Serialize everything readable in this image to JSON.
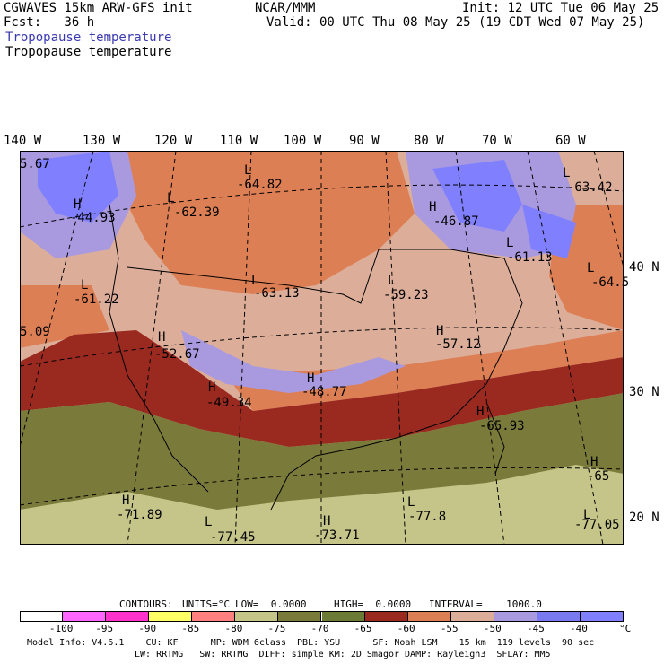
{
  "header": {
    "left1": "CGWAVES 15km ARW-GFS init",
    "left2": "Fcst:   36 h",
    "center1": "NCAR/MMM",
    "right1": "Init: 12 UTC Tue 06 May 25",
    "right2": "Valid: 00 UTC Thu 08 May 25 (19 CDT Wed 07 May 25)",
    "title_blue": "Tropopause temperature",
    "title_black": "Tropopause temperature",
    "title_blue_color": "#3a3ab0"
  },
  "axes": {
    "lon_labels": [
      "140 W",
      "130 W",
      "120 W",
      "110 W",
      "100 W",
      "90 W",
      "80 W",
      "70 W",
      "60 W"
    ],
    "lat_labels": [
      "40 N",
      "30 N",
      "20 N"
    ]
  },
  "map_labels": [
    {
      "id": "ne-low",
      "letter": "L",
      "value": "-64.82"
    },
    {
      "id": "nw-low",
      "letter": "L",
      "value": "-62.39"
    },
    {
      "id": "pnw-high",
      "letter": "H",
      "value": "-44.93"
    },
    {
      "id": "lakes-high",
      "letter": "H",
      "value": "-46.87"
    },
    {
      "id": "nb-low",
      "letter": "L",
      "value": "-63.42"
    },
    {
      "id": "nbr-low",
      "letter": "L",
      "value": "-61.13"
    },
    {
      "id": "atl-low",
      "letter": "L",
      "value": "-64.5"
    },
    {
      "id": "west-low",
      "letter": "L",
      "value": "-61.22"
    },
    {
      "id": "plains-low",
      "letter": "L",
      "value": "-63.13"
    },
    {
      "id": "ohio-low",
      "letter": "L",
      "value": "-59.23"
    },
    {
      "id": "ma-high",
      "letter": "H",
      "value": "-57.12"
    },
    {
      "id": "sw-high",
      "letter": "H",
      "value": "-52.67"
    },
    {
      "id": "nm-high",
      "letter": "H",
      "value": "-49.34"
    },
    {
      "id": "ok-high",
      "letter": "H",
      "value": "-48.77"
    },
    {
      "id": "ga-high",
      "letter": "H",
      "value": "-65.93"
    },
    {
      "id": "atl2-high",
      "letter": "H",
      "value": "-65"
    },
    {
      "id": "pac-high",
      "letter": "H",
      "value": "-71.89"
    },
    {
      "id": "mx-low",
      "letter": "L",
      "value": "-77.45"
    },
    {
      "id": "gulf-high",
      "letter": "H",
      "value": "-73.71"
    },
    {
      "id": "cuba-low",
      "letter": "L",
      "value": "-77.8"
    },
    {
      "id": "carib-low",
      "letter": "L",
      "value": "-77.05"
    },
    {
      "id": "edge-w",
      "letter": "",
      "value": "5.09"
    },
    {
      "id": "edge-nw",
      "letter": "",
      "value": "5.67"
    }
  ],
  "contours_line": {
    "label": "CONTOURS:",
    "units": "UNITS=°C",
    "low": "LOW=  0.0000",
    "high": "HIGH=  0.0000",
    "interval": "INTERVAL=    1000.0"
  },
  "legend": {
    "colors": [
      "#ffffff",
      "#ff66ff",
      "#ff33cc",
      "#ffff66",
      "#ff8080",
      "#c5c58a",
      "#7a7a3a",
      "#6b7a35",
      "#9a2a20",
      "#dd7f55",
      "#dcae9a",
      "#a99ae0",
      "#7a7af0",
      "#8080ff"
    ],
    "labels": [
      "-100",
      "-95",
      "-90",
      "-85",
      "-80",
      "-75",
      "-70",
      "-65",
      "-60",
      "-55",
      "-50",
      "-45",
      "-40"
    ],
    "unit": "°C"
  },
  "footer": {
    "line1": "Model Info: V4.6.1    CU: KF      MP: WDM 6class  PBL: YSU      SF: Noah LSM    15 km  119 levels  90 sec",
    "line2": "LW: RRTMG   SW: RRTMG  DIFF: simple KM: 2D Smagor DAMP: Rayleigh3  SFLAY: MM5"
  }
}
